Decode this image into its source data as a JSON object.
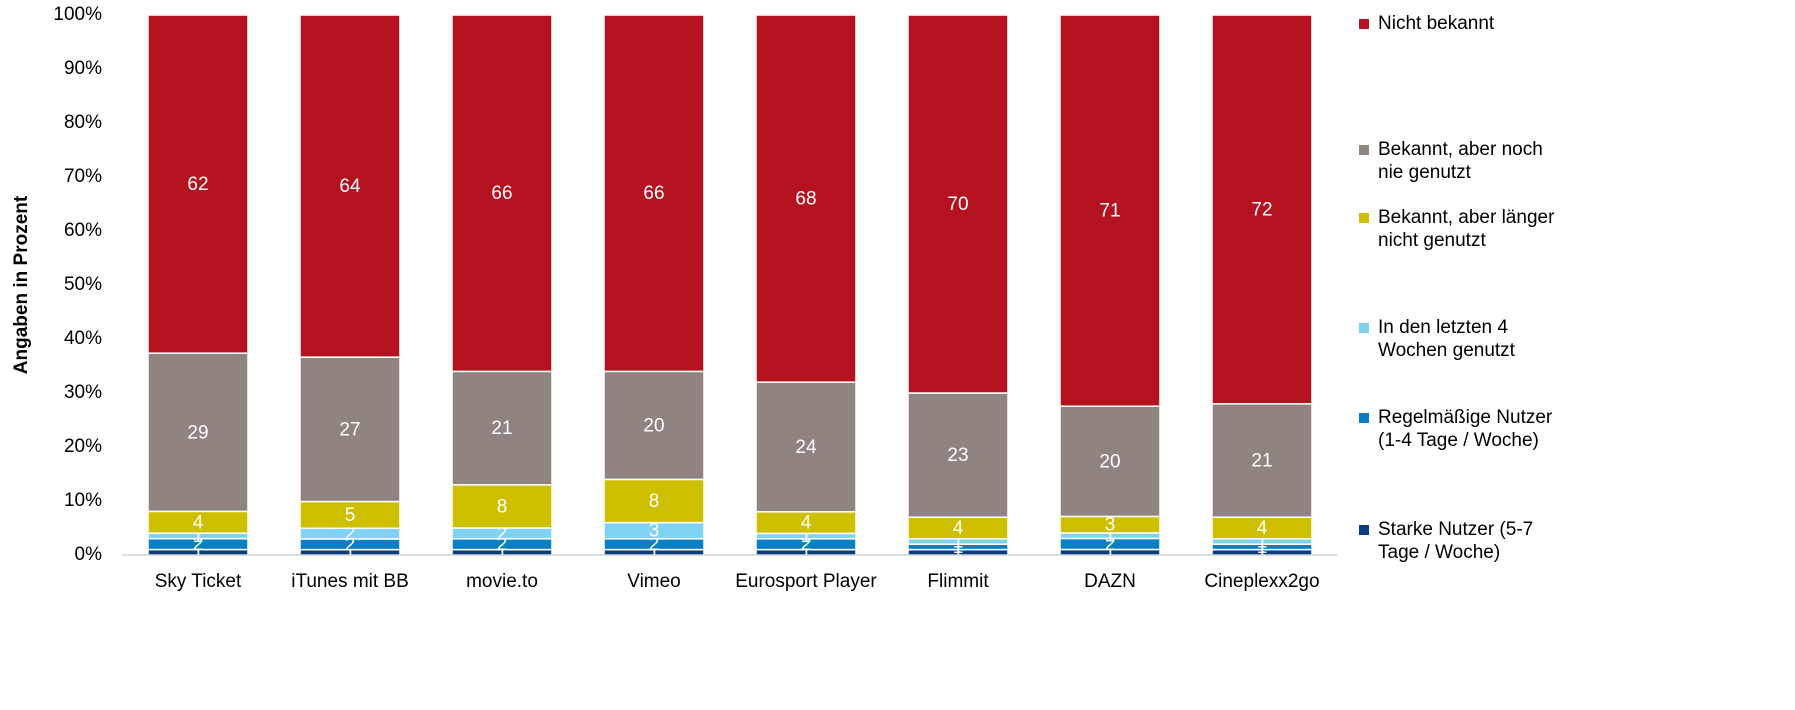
{
  "chart_data": {
    "type": "stacked100",
    "y_label": "Angaben in Prozent",
    "categories": [
      "Sky Ticket",
      "iTunes mit BB",
      "movie.to",
      "Vimeo",
      "Eurosport Player",
      "Flimmit",
      "DAZN",
      "Cineplexx2go"
    ],
    "series": [
      {
        "name": "Starke Nutzer (5-7 Tage / Woche)",
        "color": "#0b3d7f",
        "values": [
          1,
          1,
          1,
          1,
          1,
          1,
          1,
          1
        ]
      },
      {
        "name": "Regelmäßige Nutzer (1-4 Tage / Woche)",
        "color": "#0a7fc2",
        "values": [
          2,
          2,
          2,
          2,
          2,
          1,
          2,
          1
        ]
      },
      {
        "name": "In den letzten 4 Wochen genutzt",
        "color": "#7fd2f2",
        "values": [
          1,
          2,
          2,
          3,
          1,
          1,
          1,
          1
        ]
      },
      {
        "name": "Bekannt, aber länger nicht genutzt",
        "color": "#cebf00",
        "values": [
          4,
          5,
          8,
          8,
          4,
          4,
          3,
          4
        ]
      },
      {
        "name": "Bekannt, aber noch nie genutzt",
        "color": "#8f847f",
        "values": [
          29,
          27,
          21,
          20,
          24,
          23,
          20,
          21
        ]
      },
      {
        "name": "Nicht bekannt",
        "color": "#b51220",
        "values": [
          62,
          64,
          66,
          66,
          68,
          70,
          71,
          72
        ]
      }
    ],
    "ylim": [
      0,
      100
    ],
    "yticks": [
      {
        "value": 0,
        "label": "0%"
      },
      {
        "value": 10,
        "label": "10%"
      },
      {
        "value": 20,
        "label": "20%"
      },
      {
        "value": 30,
        "label": "30%"
      },
      {
        "value": 40,
        "label": "40%"
      },
      {
        "value": 50,
        "label": "50%"
      },
      {
        "value": 60,
        "label": "60%"
      },
      {
        "value": 70,
        "label": "70%"
      },
      {
        "value": 80,
        "label": "80%"
      },
      {
        "value": 90,
        "label": "90%"
      },
      {
        "value": 100,
        "label": "100%"
      }
    ],
    "legend": "right"
  }
}
